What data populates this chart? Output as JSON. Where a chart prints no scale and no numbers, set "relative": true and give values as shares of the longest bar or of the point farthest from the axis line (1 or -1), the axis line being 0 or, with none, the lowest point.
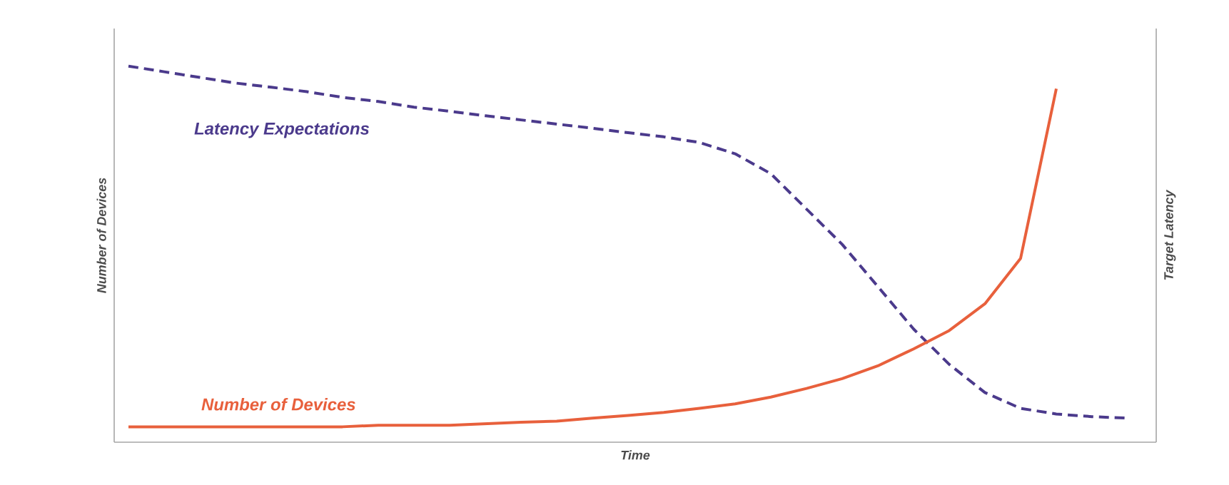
{
  "chart_data": {
    "type": "line",
    "relative": true,
    "xlabel": "Time",
    "ylabel": "Number of Devices",
    "y2label": "Target Latency",
    "legend": false,
    "categories": [
      null,
      null,
      null,
      null,
      null,
      null,
      null,
      null,
      null,
      null,
      null,
      null,
      null,
      null,
      null,
      null,
      null,
      null,
      null,
      null,
      null,
      null,
      null,
      null,
      null,
      null,
      null,
      null,
      null
    ],
    "series": [
      {
        "name": "Latency Expectations",
        "color": "#4b3a8c",
        "line_style": "dashed",
        "values": [
          1,
          0.985,
          0.97,
          0.955,
          0.944,
          0.932,
          0.917,
          0.906,
          0.891,
          0.88,
          0.868,
          0.857,
          0.846,
          0.835,
          0.823,
          0.812,
          0.797,
          0.767,
          0.714,
          0.62,
          0.526,
          0.414,
          0.301,
          0.207,
          0.132,
          0.09,
          0.075,
          0.068,
          0.064
        ]
      },
      {
        "name": "Number of Devices",
        "color": "#e8603c",
        "line_style": "solid",
        "values": [
          0.041,
          0.041,
          0.041,
          0.041,
          0.041,
          0.041,
          0.041,
          0.045,
          0.045,
          0.045,
          0.049,
          0.053,
          0.056,
          0.064,
          0.071,
          0.079,
          0.09,
          0.102,
          0.12,
          0.143,
          0.169,
          0.203,
          0.248,
          0.297,
          0.368,
          0.489,
          0.94,
          null,
          null
        ]
      }
    ]
  }
}
